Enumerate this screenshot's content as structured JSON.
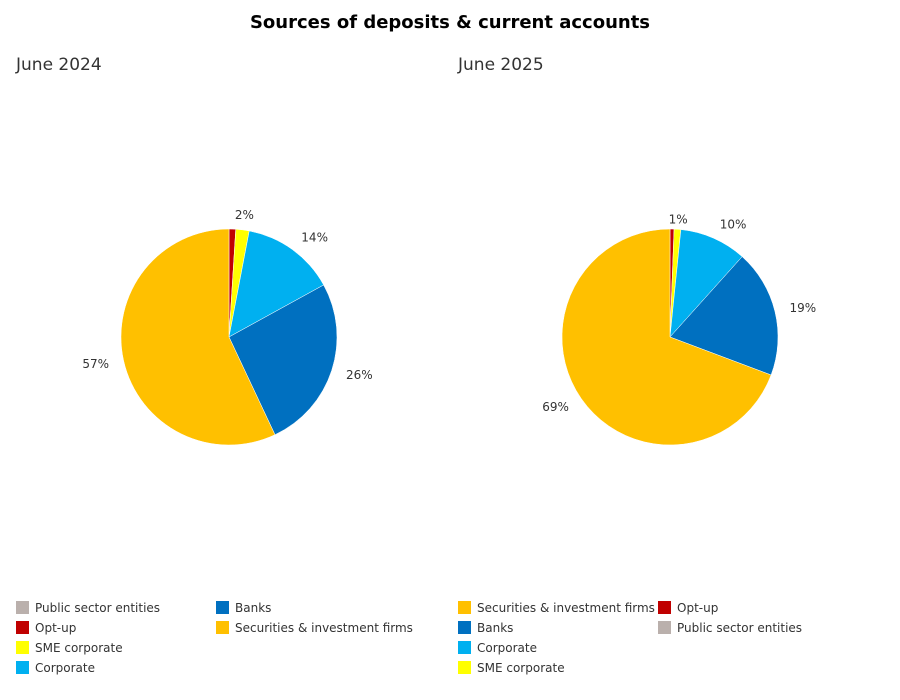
{
  "title": "Sources of deposits & current accounts",
  "colors": {
    "Public sector entities": "#bab0ac",
    "Opt-up": "#c00000",
    "SME corporate": "#ffff00",
    "Corporate": "#00b0f0",
    "Banks": "#0070c0",
    "Securities & investment firms": "#ffc000"
  },
  "chart_data": [
    {
      "type": "pie",
      "subtitle": "June 2024",
      "slices": [
        {
          "name": "Public sector entities",
          "value": 0,
          "label": ""
        },
        {
          "name": "Opt-up",
          "value": 1,
          "label": ""
        },
        {
          "name": "SME corporate",
          "value": 2,
          "label": "2%"
        },
        {
          "name": "Corporate",
          "value": 14,
          "label": "14%"
        },
        {
          "name": "Banks",
          "value": 26,
          "label": "26%"
        },
        {
          "name": "Securities & investment firms",
          "value": 57,
          "label": "57%"
        }
      ],
      "legend": [
        "Public sector entities",
        "Opt-up",
        "SME corporate",
        "Corporate",
        "Banks",
        "Securities & investment firms"
      ]
    },
    {
      "type": "pie",
      "subtitle": "June 2025",
      "slices": [
        {
          "name": "Public sector entities",
          "value": 0,
          "label": ""
        },
        {
          "name": "Opt-up",
          "value": 0.6,
          "label": ""
        },
        {
          "name": "SME corporate",
          "value": 1,
          "label": "1%"
        },
        {
          "name": "Corporate",
          "value": 10,
          "label": "10%"
        },
        {
          "name": "Banks",
          "value": 19,
          "label": "19%"
        },
        {
          "name": "Securities & investment firms",
          "value": 69,
          "label": "69%"
        }
      ],
      "legend": [
        "Securities & investment firms",
        "Banks",
        "Corporate",
        "SME corporate",
        "Opt-up",
        "Public sector entities"
      ]
    }
  ]
}
